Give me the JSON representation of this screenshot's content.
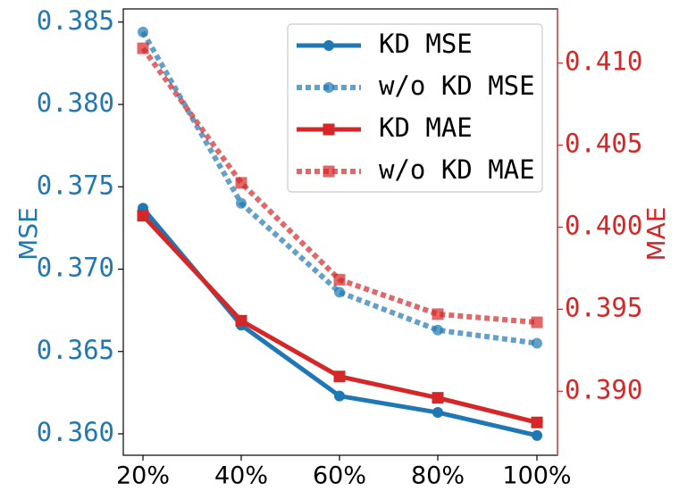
{
  "chart_data": {
    "type": "line",
    "categories": [
      "20%",
      "40%",
      "60%",
      "80%",
      "100%"
    ],
    "y_left": {
      "label": "MSE",
      "range": [
        0.3587,
        0.3858
      ],
      "ticks": [
        0.36,
        0.365,
        0.37,
        0.375,
        0.38,
        0.385
      ],
      "tick_labels": [
        "0.360",
        "0.365",
        "0.370",
        "0.375",
        "0.380",
        "0.385"
      ],
      "color": "#1f77b4"
    },
    "y_right": {
      "label": "MAE",
      "range": [
        0.3861,
        0.4133
      ],
      "ticks": [
        0.39,
        0.395,
        0.4,
        0.405,
        0.41
      ],
      "tick_labels": [
        "0.390",
        "0.395",
        "0.400",
        "0.405",
        "0.410"
      ],
      "color": "#d62728"
    },
    "series": [
      {
        "name": "KD MSE",
        "axis": "left",
        "style": "solid",
        "marker": "circle",
        "color": "#1f77b4",
        "values": [
          0.3737,
          0.3666,
          0.3623,
          0.3613,
          0.3599
        ]
      },
      {
        "name": "w/o KD MSE",
        "axis": "left",
        "style": "dotted",
        "marker": "circle",
        "color": "#1f77b4",
        "values": [
          0.3844,
          0.374,
          0.3686,
          0.3663,
          0.3655
        ]
      },
      {
        "name": "KD MAE",
        "axis": "right",
        "style": "solid",
        "marker": "square",
        "color": "#d62728",
        "values": [
          0.4007,
          0.3943,
          0.3909,
          0.3896,
          0.3881
        ]
      },
      {
        "name": "w/o KD MAE",
        "axis": "right",
        "style": "dotted",
        "marker": "square",
        "color": "#d62728",
        "values": [
          0.4109,
          0.4027,
          0.3968,
          0.3947,
          0.3942
        ]
      }
    ],
    "legend_position": "top-right",
    "grid": false
  }
}
